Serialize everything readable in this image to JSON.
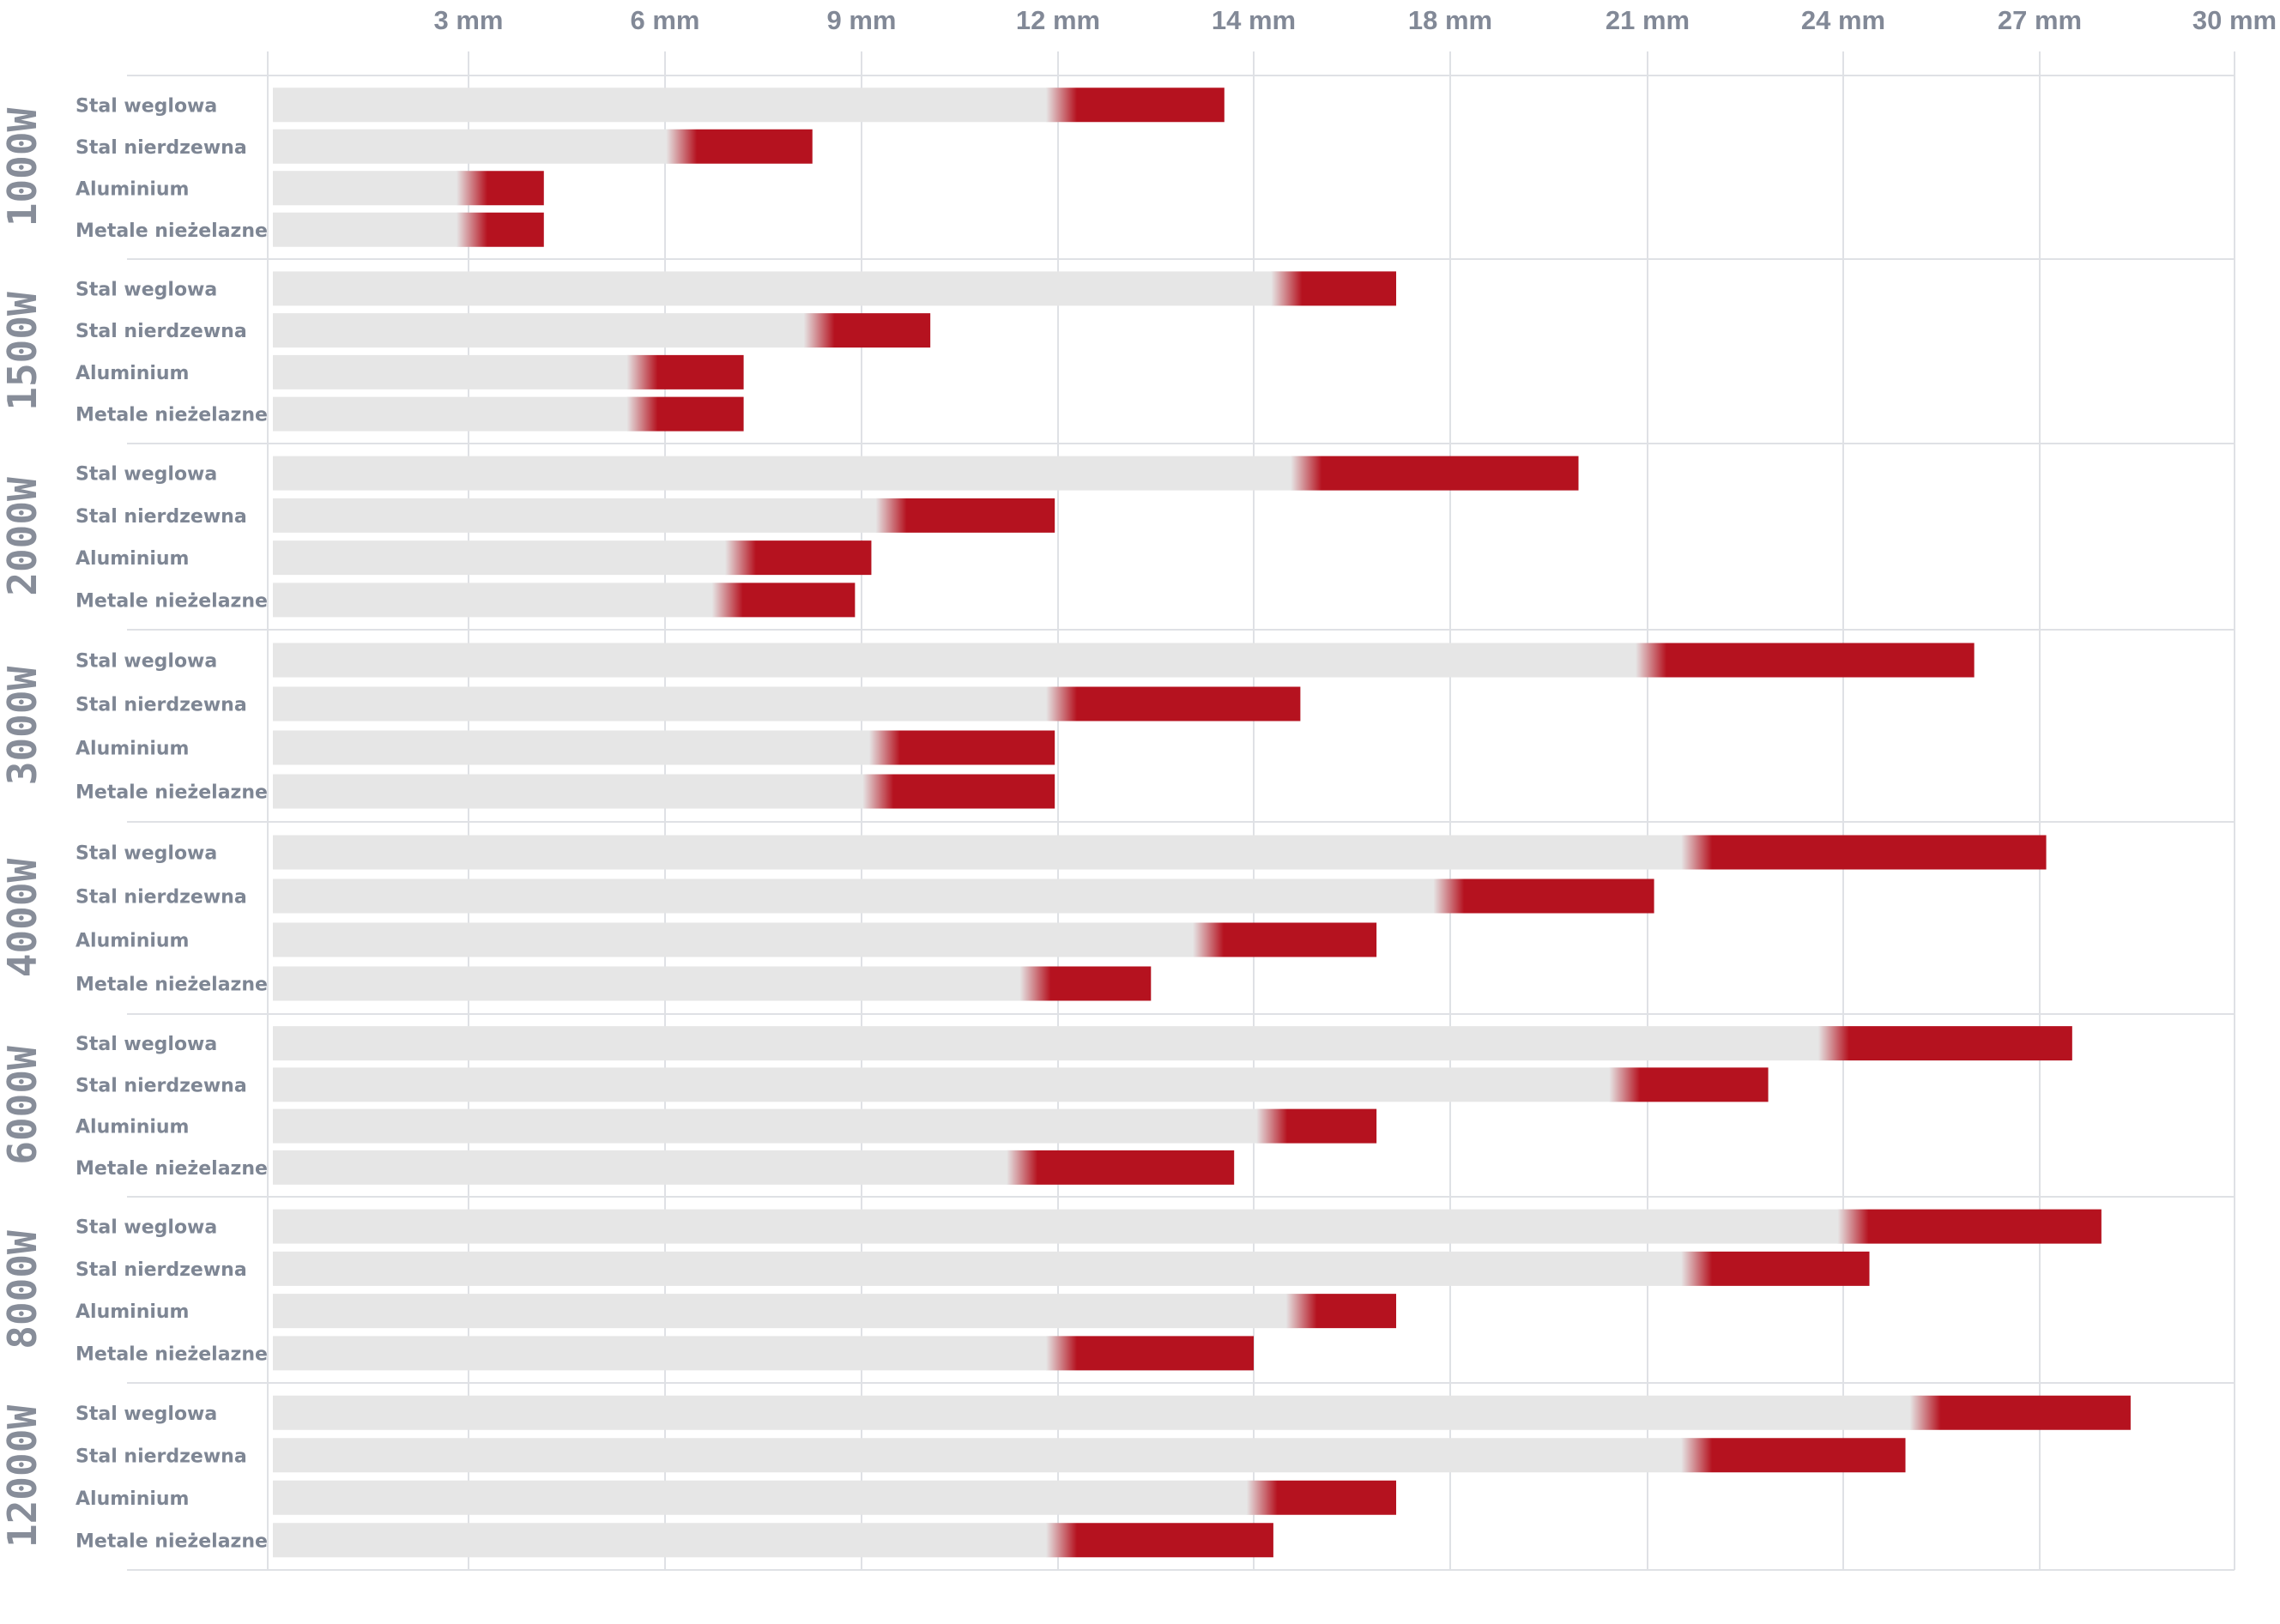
{
  "chart_data": {
    "type": "bar",
    "orientation": "horizontal",
    "x_ticks": [
      "3 mm",
      "6 mm",
      "9 mm",
      "12 mm",
      "14 mm",
      "18 mm",
      "21 mm",
      "24 mm",
      "27 mm",
      "30 mm"
    ],
    "x_unit": "mm",
    "grid": true,
    "colors": {
      "track": "#e6e6e6",
      "bar": "#b5121f",
      "grid": "#dfe1e5",
      "text": "#828997"
    },
    "groups": [
      {
        "label": "1000W",
        "rows": [
          {
            "label": "Stal weglowa",
            "start": 12.0,
            "end": 13.7
          },
          {
            "label": "Stal nierdzewna",
            "start": 6.2,
            "end": 8.25
          },
          {
            "label": "Aluminium",
            "start": 3.0,
            "end": 4.15
          },
          {
            "label": "Metale nieżelazne",
            "start": 3.0,
            "end": 4.15
          }
        ]
      },
      {
        "label": "1500W",
        "rows": [
          {
            "label": "Stal weglowa",
            "start": 14.6,
            "end": 16.9
          },
          {
            "label": "Stal nierdzewna",
            "start": 8.3,
            "end": 10.05
          },
          {
            "label": "Aluminium",
            "start": 5.6,
            "end": 7.2
          },
          {
            "label": "Metale nieżelazne",
            "start": 5.6,
            "end": 7.2
          }
        ]
      },
      {
        "label": "2000W",
        "rows": [
          {
            "label": "Stal weglowa",
            "start": 15.0,
            "end": 19.95
          },
          {
            "label": "Stal nierdzewna",
            "start": 9.4,
            "end": 11.95
          },
          {
            "label": "Aluminium",
            "start": 7.1,
            "end": 9.15
          },
          {
            "label": "Metale nieżelazne",
            "start": 6.9,
            "end": 8.9
          }
        ]
      },
      {
        "label": "3000W",
        "rows": [
          {
            "label": "Stal weglowa",
            "start": 21.0,
            "end": 26.0
          },
          {
            "label": "Stal nierdzewna",
            "start": 12.0,
            "end": 14.95
          },
          {
            "label": "Aluminium",
            "start": 9.3,
            "end": 11.95
          },
          {
            "label": "Metale nieżelazne",
            "start": 9.2,
            "end": 11.95
          }
        ]
      },
      {
        "label": "4000W",
        "rows": [
          {
            "label": "Stal weglowa",
            "start": 21.7,
            "end": 27.1
          },
          {
            "label": "Stal nierdzewna",
            "start": 17.9,
            "end": 21.1
          },
          {
            "label": "Aluminium",
            "start": 13.5,
            "end": 16.5
          },
          {
            "label": "Metale nieżelazne",
            "start": 11.6,
            "end": 12.95
          }
        ]
      },
      {
        "label": "6000W",
        "rows": [
          {
            "label": "Stal weglowa",
            "start": 23.8,
            "end": 27.5
          },
          {
            "label": "Stal nierdzewna",
            "start": 20.6,
            "end": 22.85
          },
          {
            "label": "Aluminium",
            "start": 14.3,
            "end": 16.5
          },
          {
            "label": "Metale nieżelazne",
            "start": 11.4,
            "end": 13.8
          }
        ]
      },
      {
        "label": "8000W",
        "rows": [
          {
            "label": "Stal weglowa",
            "start": 24.1,
            "end": 27.95
          },
          {
            "label": "Stal nierdzewna",
            "start": 21.7,
            "end": 24.4
          },
          {
            "label": "Aluminium",
            "start": 14.9,
            "end": 16.9
          },
          {
            "label": "Metale nieżelazne",
            "start": 12.0,
            "end": 14.0
          }
        ]
      },
      {
        "label": "12000W",
        "rows": [
          {
            "label": "Stal weglowa",
            "start": 25.2,
            "end": 28.4
          },
          {
            "label": "Stal nierdzewna",
            "start": 21.7,
            "end": 24.95
          },
          {
            "label": "Aluminium",
            "start": 14.1,
            "end": 16.9
          },
          {
            "label": "Metale nieżelazne",
            "start": 12.0,
            "end": 14.4
          }
        ]
      }
    ]
  }
}
